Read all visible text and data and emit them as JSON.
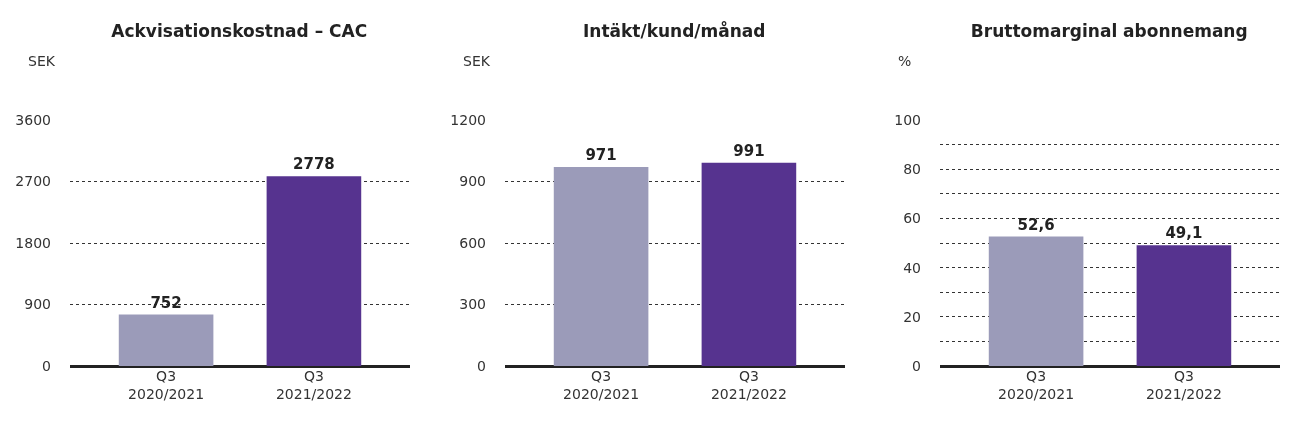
{
  "chart_data": [
    {
      "type": "bar",
      "title": "Ackvisationskostnad – CAC",
      "ylabel": "SEK",
      "categories": [
        "Q3\n2020/2021",
        "Q3\n2021/2022"
      ],
      "values": [
        752,
        2778
      ],
      "colors": [
        "#9b9bb9",
        "#56338f"
      ],
      "value_labels": [
        "752",
        "2778"
      ],
      "ylim": [
        0,
        3600
      ],
      "yticks": [
        0,
        900,
        1800,
        2700,
        3600
      ],
      "grid": "y"
    },
    {
      "type": "bar",
      "title": "Intäkt/kund/månad",
      "ylabel": "SEK",
      "categories": [
        "Q3\n2020/2021",
        "Q3\n2021/2022"
      ],
      "values": [
        971,
        991
      ],
      "colors": [
        "#9b9bb9",
        "#56338f"
      ],
      "value_labels": [
        "971",
        "991"
      ],
      "ylim": [
        0,
        1200
      ],
      "yticks": [
        0,
        300,
        600,
        900,
        1200
      ],
      "grid": "y"
    },
    {
      "type": "bar",
      "title": "Bruttomarginal abonnemang",
      "ylabel": "%",
      "categories": [
        "Q3\n2020/2021",
        "Q3\n2021/2022"
      ],
      "values": [
        52.6,
        49.1
      ],
      "colors": [
        "#9b9bb9",
        "#56338f"
      ],
      "value_labels": [
        "52,6",
        "49,1"
      ],
      "ylim": [
        0,
        100
      ],
      "yticks": [
        0,
        {
          "value": 10,
          "label": null
        },
        20,
        {
          "value": 30,
          "label": null
        },
        40,
        {
          "value": 50,
          "label": null
        },
        60,
        {
          "value": 70,
          "label": null
        },
        80,
        {
          "value": 90,
          "label": null
        },
        100
      ],
      "grid": "y"
    }
  ]
}
